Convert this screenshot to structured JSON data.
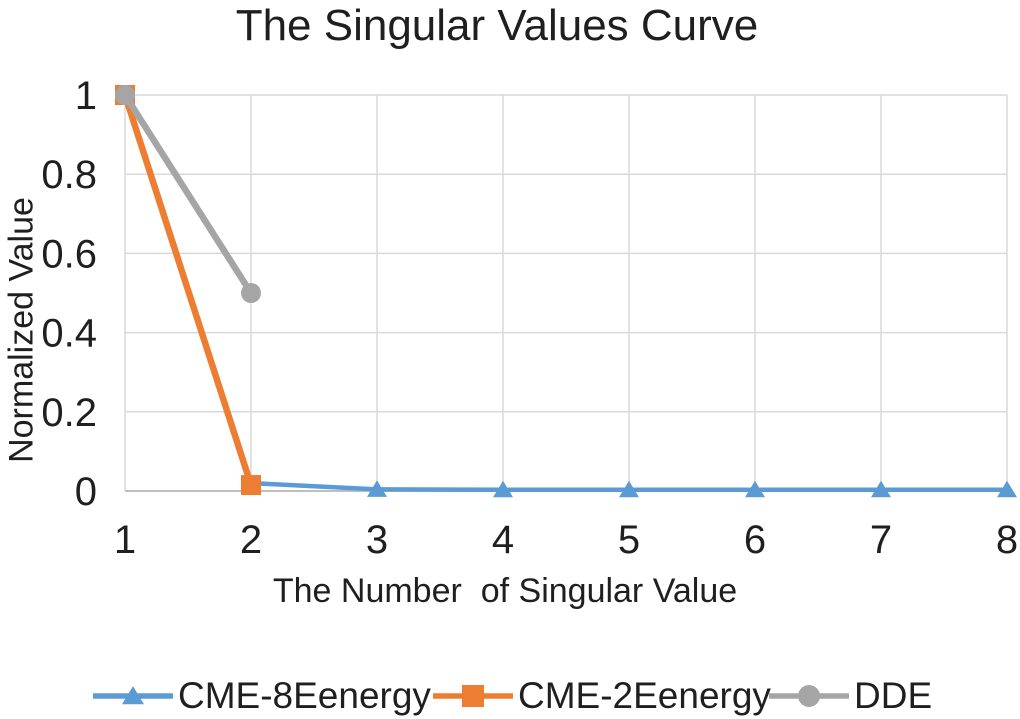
{
  "chart_data": {
    "type": "line",
    "title": "The Singular Values Curve",
    "xlabel": "The Number  of Singular Value",
    "ylabel": "Normalized Value",
    "x": [
      1,
      2,
      3,
      4,
      5,
      6,
      7,
      8
    ],
    "xtick_labels": [
      "1",
      "2",
      "3",
      "4",
      "5",
      "6",
      "7",
      "8"
    ],
    "yticks": [
      0,
      0.2,
      0.4,
      0.6,
      0.8,
      1
    ],
    "ytick_labels": [
      "0",
      "0.2",
      "0.4",
      "0.6",
      "0.8",
      "1"
    ],
    "xlim": [
      1,
      8
    ],
    "ylim": [
      0,
      1
    ],
    "grid": true,
    "legend_position": "bottom",
    "series": [
      {
        "name": "CME-8Eenergy",
        "color": "#5B9BD5",
        "marker": "triangle",
        "line_width": 4.5,
        "x": [
          1,
          2,
          3,
          4,
          5,
          6,
          7,
          8
        ],
        "values": [
          1,
          0.02,
          0.004,
          0.003,
          0.003,
          0.003,
          0.003,
          0.003
        ]
      },
      {
        "name": "CME-2Eenergy",
        "color": "#ED7D31",
        "marker": "square",
        "line_width": 6.5,
        "x": [
          1,
          2
        ],
        "values": [
          1,
          0.015
        ]
      },
      {
        "name": "DDE",
        "color": "#A5A5A5",
        "marker": "circle",
        "line_width": 6.5,
        "x": [
          1,
          2
        ],
        "values": [
          1,
          0.5
        ]
      }
    ],
    "style": {
      "gridline_color": "#D9D9D9",
      "axis_color": "#BFBFBF",
      "text_color": "#1f1f1f",
      "background": "#FFFFFF"
    }
  }
}
